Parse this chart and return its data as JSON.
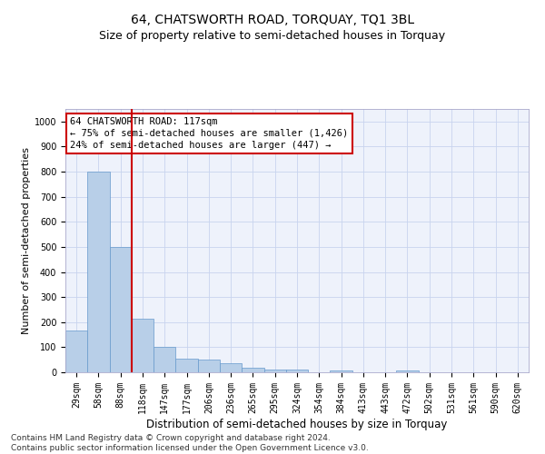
{
  "title": "64, CHATSWORTH ROAD, TORQUAY, TQ1 3BL",
  "subtitle": "Size of property relative to semi-detached houses in Torquay",
  "xlabel": "Distribution of semi-detached houses by size in Torquay",
  "ylabel": "Number of semi-detached properties",
  "footer": "Contains HM Land Registry data © Crown copyright and database right 2024.\nContains public sector information licensed under the Open Government Licence v3.0.",
  "categories": [
    "29sqm",
    "58sqm",
    "88sqm",
    "118sqm",
    "147sqm",
    "177sqm",
    "206sqm",
    "236sqm",
    "265sqm",
    "295sqm",
    "324sqm",
    "354sqm",
    "384sqm",
    "413sqm",
    "443sqm",
    "472sqm",
    "502sqm",
    "531sqm",
    "561sqm",
    "590sqm",
    "620sqm"
  ],
  "values": [
    165,
    800,
    500,
    215,
    100,
    55,
    50,
    35,
    18,
    12,
    10,
    0,
    8,
    0,
    0,
    8,
    0,
    0,
    0,
    0,
    0
  ],
  "bar_color": "#b8cfe8",
  "bar_edgecolor": "#6699cc",
  "vline_color": "#cc0000",
  "annotation_text": "64 CHATSWORTH ROAD: 117sqm\n← 75% of semi-detached houses are smaller (1,426)\n24% of semi-detached houses are larger (447) →",
  "annotation_box_edgecolor": "#cc0000",
  "annotation_box_facecolor": "#ffffff",
  "ylim": [
    0,
    1050
  ],
  "yticks": [
    0,
    100,
    200,
    300,
    400,
    500,
    600,
    700,
    800,
    900,
    1000
  ],
  "background_color": "#eef2fb",
  "grid_color": "#c8d4ee",
  "title_fontsize": 10,
  "subtitle_fontsize": 9,
  "tick_fontsize": 7,
  "ylabel_fontsize": 8,
  "xlabel_fontsize": 8.5,
  "footer_fontsize": 6.5,
  "ann_fontsize": 7.5
}
